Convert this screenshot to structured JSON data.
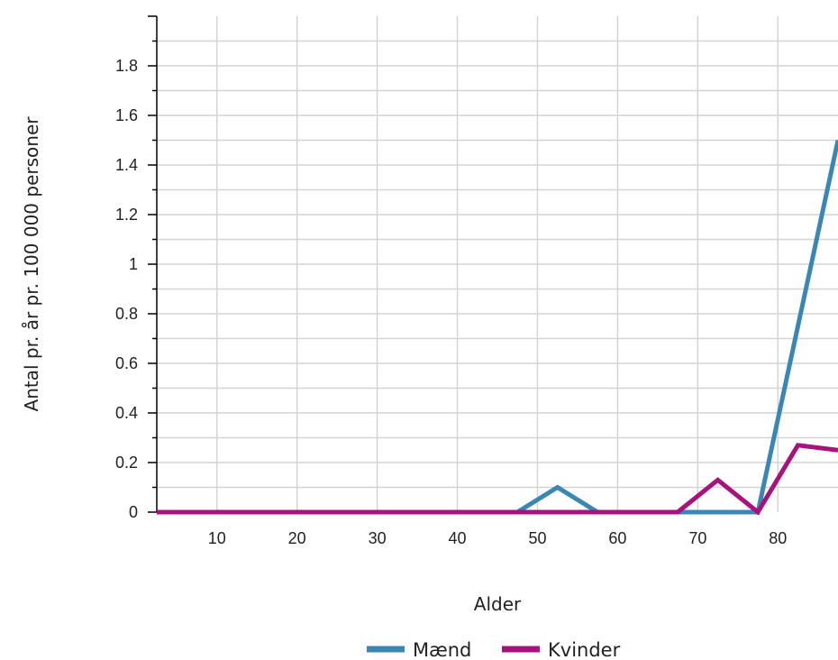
{
  "chart_data": {
    "type": "line",
    "title": "",
    "xlabel": "Alder",
    "ylabel": "Antal pr. år pr. 100 000 personer",
    "xlim": [
      2.5,
      87.5
    ],
    "ylim": [
      0,
      2
    ],
    "x_ticks": [
      10,
      20,
      30,
      40,
      50,
      60,
      70,
      80
    ],
    "x_tick_labels": [
      "10",
      "20",
      "30",
      "40",
      "50",
      "60",
      "70",
      "80"
    ],
    "y_ticks": [
      0,
      0.2,
      0.4,
      0.6,
      0.8,
      1,
      1.2,
      1.4,
      1.6,
      1.8
    ],
    "y_tick_labels": [
      "0",
      "0.2",
      "0.4",
      "0.6",
      "0.8",
      "1",
      "1.2",
      "1.4",
      "1.6",
      "1.8"
    ],
    "grid": true,
    "legend_position": "bottom-center",
    "series": [
      {
        "name": "Mænd",
        "color": "#3a87b6",
        "x": [
          2.5,
          7.5,
          12.5,
          17.5,
          22.5,
          27.5,
          32.5,
          37.5,
          42.5,
          47.5,
          52.5,
          57.5,
          62.5,
          67.5,
          72.5,
          77.5,
          82.5,
          87.5
        ],
        "y": [
          0,
          0,
          0,
          0,
          0,
          0,
          0,
          0,
          0,
          0,
          0.1,
          0,
          0,
          0,
          0,
          0,
          0.75,
          1.5
        ]
      },
      {
        "name": "Kvinder",
        "color": "#a8127c",
        "x": [
          2.5,
          7.5,
          12.5,
          17.5,
          22.5,
          27.5,
          32.5,
          37.5,
          42.5,
          47.5,
          52.5,
          57.5,
          62.5,
          67.5,
          72.5,
          77.5,
          82.5,
          87.5
        ],
        "y": [
          0,
          0,
          0,
          0,
          0,
          0,
          0,
          0,
          0,
          0,
          0,
          0,
          0,
          0,
          0.13,
          0,
          0.27,
          0.25
        ]
      }
    ]
  }
}
